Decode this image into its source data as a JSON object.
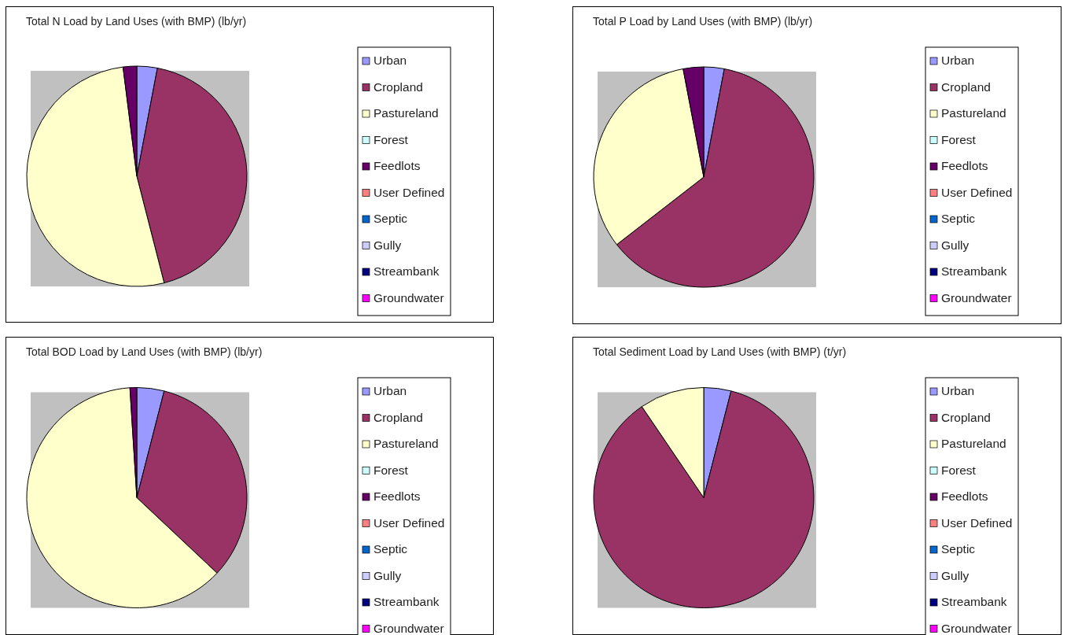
{
  "chart_data": [
    {
      "type": "pie",
      "title": "Total N Load by Land Uses (with BMP) (lb/yr)",
      "categories": [
        "Urban",
        "Cropland",
        "Pastureland",
        "Forest",
        "Feedlots",
        "User Defined",
        "Septic",
        "Gully",
        "Streambank",
        "Groundwater"
      ],
      "values": [
        3,
        43,
        52,
        0,
        2,
        0,
        0,
        0,
        0,
        0
      ],
      "colors": [
        "#9999ff",
        "#993366",
        "#ffffcc",
        "#ccffff",
        "#660066",
        "#ff8080",
        "#0066cc",
        "#ccccff",
        "#000080",
        "#ff00ff"
      ],
      "legend": "right"
    },
    {
      "type": "pie",
      "title": "Total P Load by Land Uses (with BMP) (lb/yr)",
      "categories": [
        "Urban",
        "Cropland",
        "Pastureland",
        "Forest",
        "Feedlots",
        "User Defined",
        "Septic",
        "Gully",
        "Streambank",
        "Groundwater"
      ],
      "values": [
        3,
        61.5,
        32.5,
        0,
        3,
        0,
        0,
        0,
        0,
        0
      ],
      "colors": [
        "#9999ff",
        "#993366",
        "#ffffcc",
        "#ccffff",
        "#660066",
        "#ff8080",
        "#0066cc",
        "#ccccff",
        "#000080",
        "#ff00ff"
      ],
      "legend": "right"
    },
    {
      "type": "pie",
      "title": "Total BOD Load by Land Uses (with BMP) (lb/yr)",
      "categories": [
        "Urban",
        "Cropland",
        "Pastureland",
        "Forest",
        "Feedlots",
        "User Defined",
        "Septic",
        "Gully",
        "Streambank",
        "Groundwater"
      ],
      "values": [
        4,
        33,
        62,
        0,
        1,
        0,
        0,
        0,
        0,
        0
      ],
      "colors": [
        "#9999ff",
        "#993366",
        "#ffffcc",
        "#ccffff",
        "#660066",
        "#ff8080",
        "#0066cc",
        "#ccccff",
        "#000080",
        "#ff00ff"
      ],
      "legend": "right"
    },
    {
      "type": "pie",
      "title": "Total Sediment Load by Land Uses (with BMP) (t/yr)",
      "categories": [
        "Urban",
        "Cropland",
        "Pastureland",
        "Forest",
        "Feedlots",
        "User Defined",
        "Septic",
        "Gully",
        "Streambank",
        "Groundwater"
      ],
      "values": [
        4,
        86.5,
        9.5,
        0,
        0,
        0,
        0,
        0,
        0,
        0
      ],
      "colors": [
        "#9999ff",
        "#993366",
        "#ffffcc",
        "#ccffff",
        "#660066",
        "#ff8080",
        "#0066cc",
        "#ccccff",
        "#000080",
        "#ff00ff"
      ],
      "legend": "right"
    }
  ]
}
